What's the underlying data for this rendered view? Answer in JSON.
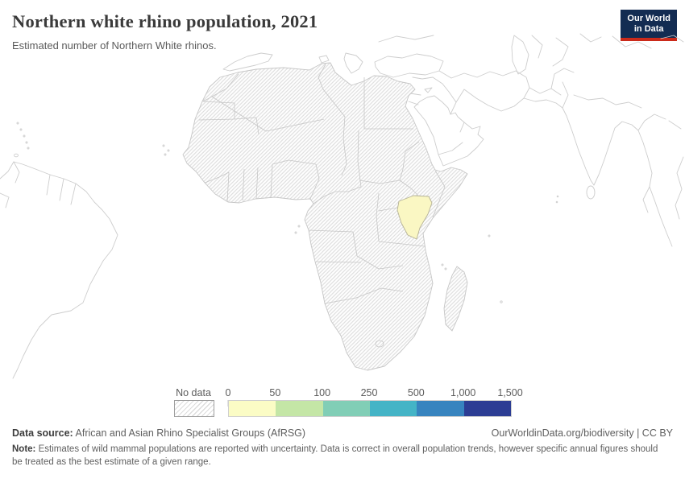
{
  "header": {
    "title": "Northern white rhino population, 2021",
    "subtitle": "Estimated number of Northern White rhinos.",
    "logo": {
      "line1": "Our World",
      "line2": "in Data",
      "bg_color": "#132c52",
      "accent_color": "#cb2a1a"
    }
  },
  "map": {
    "highlight_country": "Kenya",
    "highlight_color": "#faf7c3",
    "highlight_stroke": "#b5b296",
    "no_data_fill": "diagonal hatch",
    "hatch_line_color": "#dddddd",
    "border_color": "#c6c6c6",
    "coast_color": "#cdcdcd"
  },
  "legend": {
    "no_data_label": "No data",
    "tick_labels": [
      "0",
      "50",
      "100",
      "250",
      "500",
      "1,000",
      "1,500"
    ],
    "colors": [
      "#fbfcc5",
      "#c4e6a6",
      "#81ceb6",
      "#44b4c6",
      "#3784bf",
      "#2c3d94"
    ]
  },
  "footer": {
    "source_label": "Data source:",
    "source_text": " African and Asian Rhino Specialist Groups (AfRSG)",
    "link": "OurWorldinData.org/biodiversity | CC BY",
    "note_label": "Note:",
    "note_text": " Estimates of wild mammal populations are reported with uncertainty. Data is correct in overall population trends, however specific annual figures should be treated as the best estimate of a given range."
  },
  "chart_data": {
    "type": "choropleth_map",
    "title": "Northern white rhino population, 2021",
    "subtitle": "Estimated number of Northern White rhinos.",
    "year": 2021,
    "legend": {
      "no_data_label": "No data",
      "no_data_style": "diagonal-hatch",
      "bin_edges": [
        0,
        50,
        100,
        250,
        500,
        1000,
        1500
      ],
      "bin_edge_labels": [
        "0",
        "50",
        "100",
        "250",
        "500",
        "1,000",
        "1,500"
      ],
      "bin_colors": [
        "#fbfcc5",
        "#c4e6a6",
        "#81ceb6",
        "#44b4c6",
        "#3784bf",
        "#2c3d94"
      ]
    },
    "data_points": [
      {
        "entity": "Kenya",
        "value_bin": "0–50",
        "rendered_color": "#faf7c3"
      }
    ],
    "no_data_regions": "All other African countries and Madagascar rendered with hatched no-data pattern; non-African land drawn as plain outlines",
    "map_extent": "Africa-centered view including parts of South America, southern Europe, Middle East and South Asia"
  }
}
